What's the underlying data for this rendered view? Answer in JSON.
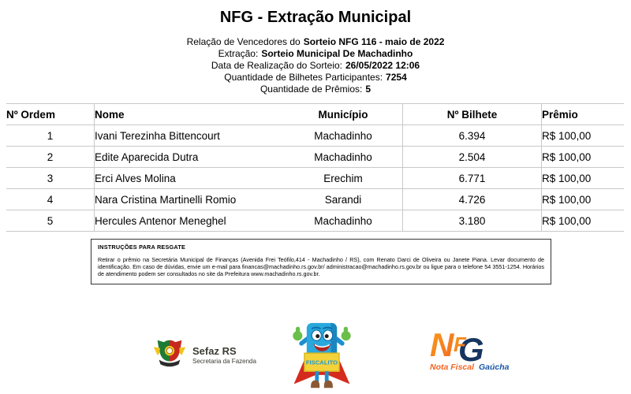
{
  "header": {
    "title": "NFG - Extração Municipal",
    "lines": [
      {
        "label": "Relação de Vencedores do",
        "value": "Sorteio NFG 116 - maio de 2022"
      },
      {
        "label": "Extração:",
        "value": "Sorteio Municipal De Machadinho"
      },
      {
        "label": "Data de Realização do Sorteio:",
        "value": "26/05/2022 12:06"
      },
      {
        "label": "Quantidade de Bilhetes Participantes:",
        "value": "7254"
      },
      {
        "label": "Quantidade de Prêmios:",
        "value": "5"
      }
    ]
  },
  "table": {
    "columns": [
      "Nº Ordem",
      "Nome",
      "Município",
      "Nº Bilhete",
      "Prêmio"
    ],
    "rows": [
      [
        "1",
        "Ivani Terezinha Bittencourt",
        "Machadinho",
        "6.394",
        "R$ 100,00"
      ],
      [
        "2",
        "Edite Aparecida Dutra",
        "Machadinho",
        "2.504",
        "R$ 100,00"
      ],
      [
        "3",
        "Erci Alves Molina",
        "Erechim",
        "6.771",
        "R$ 100,00"
      ],
      [
        "4",
        "Nara Cristina Martinelli Romio",
        "Sarandi",
        "4.726",
        "R$ 100,00"
      ],
      [
        "5",
        "Hercules Antenor Meneghel",
        "Machadinho",
        "3.180",
        "R$ 100,00"
      ]
    ]
  },
  "instructions": {
    "title": "INSTRUÇÕES PARA RESGATE",
    "body": "Retirar o prêmio na Secretária Municipal de Finanças (Avenida Frei Teófilo,414 - Machadinho / RS), com Renato Darci de Oliveira ou Janete Piana. Levar documento de identificação. Em caso de dúvidas, envie um e-mail para financas@machadinho.rs.gov.br/ administracao@machadinho.rs.gov.br ou ligue para o telefone 54 3551-1254. Horários de atendimento podem ser consultados no site da Prefeitura www.machadinho.rs.gov.br."
  },
  "footer": {
    "sefaz": {
      "name": "Sefaz RS",
      "subtitle": "Secretaria da Fazenda"
    },
    "mascot": {
      "sign_text": "FISCALITO"
    },
    "nfg": {
      "n": "N",
      "f": "F",
      "g": "G",
      "tagline_orange": "Nota Fiscal",
      "tagline_blue": "Gaúcha"
    }
  },
  "colors": {
    "table_border": "#c8c8c8",
    "mascot_blue": "#29a8dd",
    "mascot_cape_red": "#d42b1e",
    "mascot_sign_yellow": "#f3d23a",
    "mascot_hand_green": "#6abf4b",
    "mascot_boot_brown": "#8a5a35",
    "nfg_orange": "#f68b1f",
    "nfg_navy": "#16355f",
    "nfg_blue": "#1b57a8",
    "sefaz_green": "#1e7a34",
    "sefaz_red": "#c8281e",
    "sefaz_yellow": "#f0c419"
  }
}
